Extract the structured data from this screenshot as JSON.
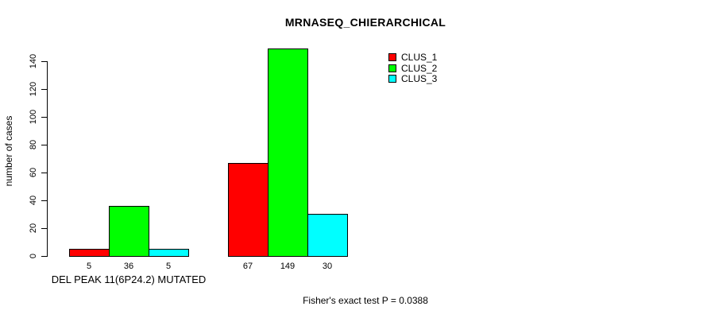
{
  "chart_data": {
    "type": "bar",
    "title": "MRNASEQ_CHIERARCHICAL",
    "ylabel": "number of cases",
    "xlabel": "",
    "ylim": [
      0,
      140
    ],
    "yticks": [
      0,
      20,
      40,
      60,
      80,
      100,
      120,
      140
    ],
    "grid": false,
    "legend_position": "top-right",
    "series": [
      {
        "name": "CLUS_1",
        "color": "#ff0000"
      },
      {
        "name": "CLUS_2",
        "color": "#00ff00"
      },
      {
        "name": "CLUS_3",
        "color": "#00ffff"
      }
    ],
    "groups": [
      {
        "label": "DEL PEAK 11(6P24.2) MUTATED",
        "values": [
          5,
          36,
          5
        ]
      },
      {
        "label": "",
        "values": [
          67,
          149,
          30
        ]
      }
    ],
    "annotation": "Fisher's exact test P = 0.0388"
  },
  "colors": {
    "axis": "#000000",
    "text": "#000000",
    "background": "#ffffff"
  }
}
